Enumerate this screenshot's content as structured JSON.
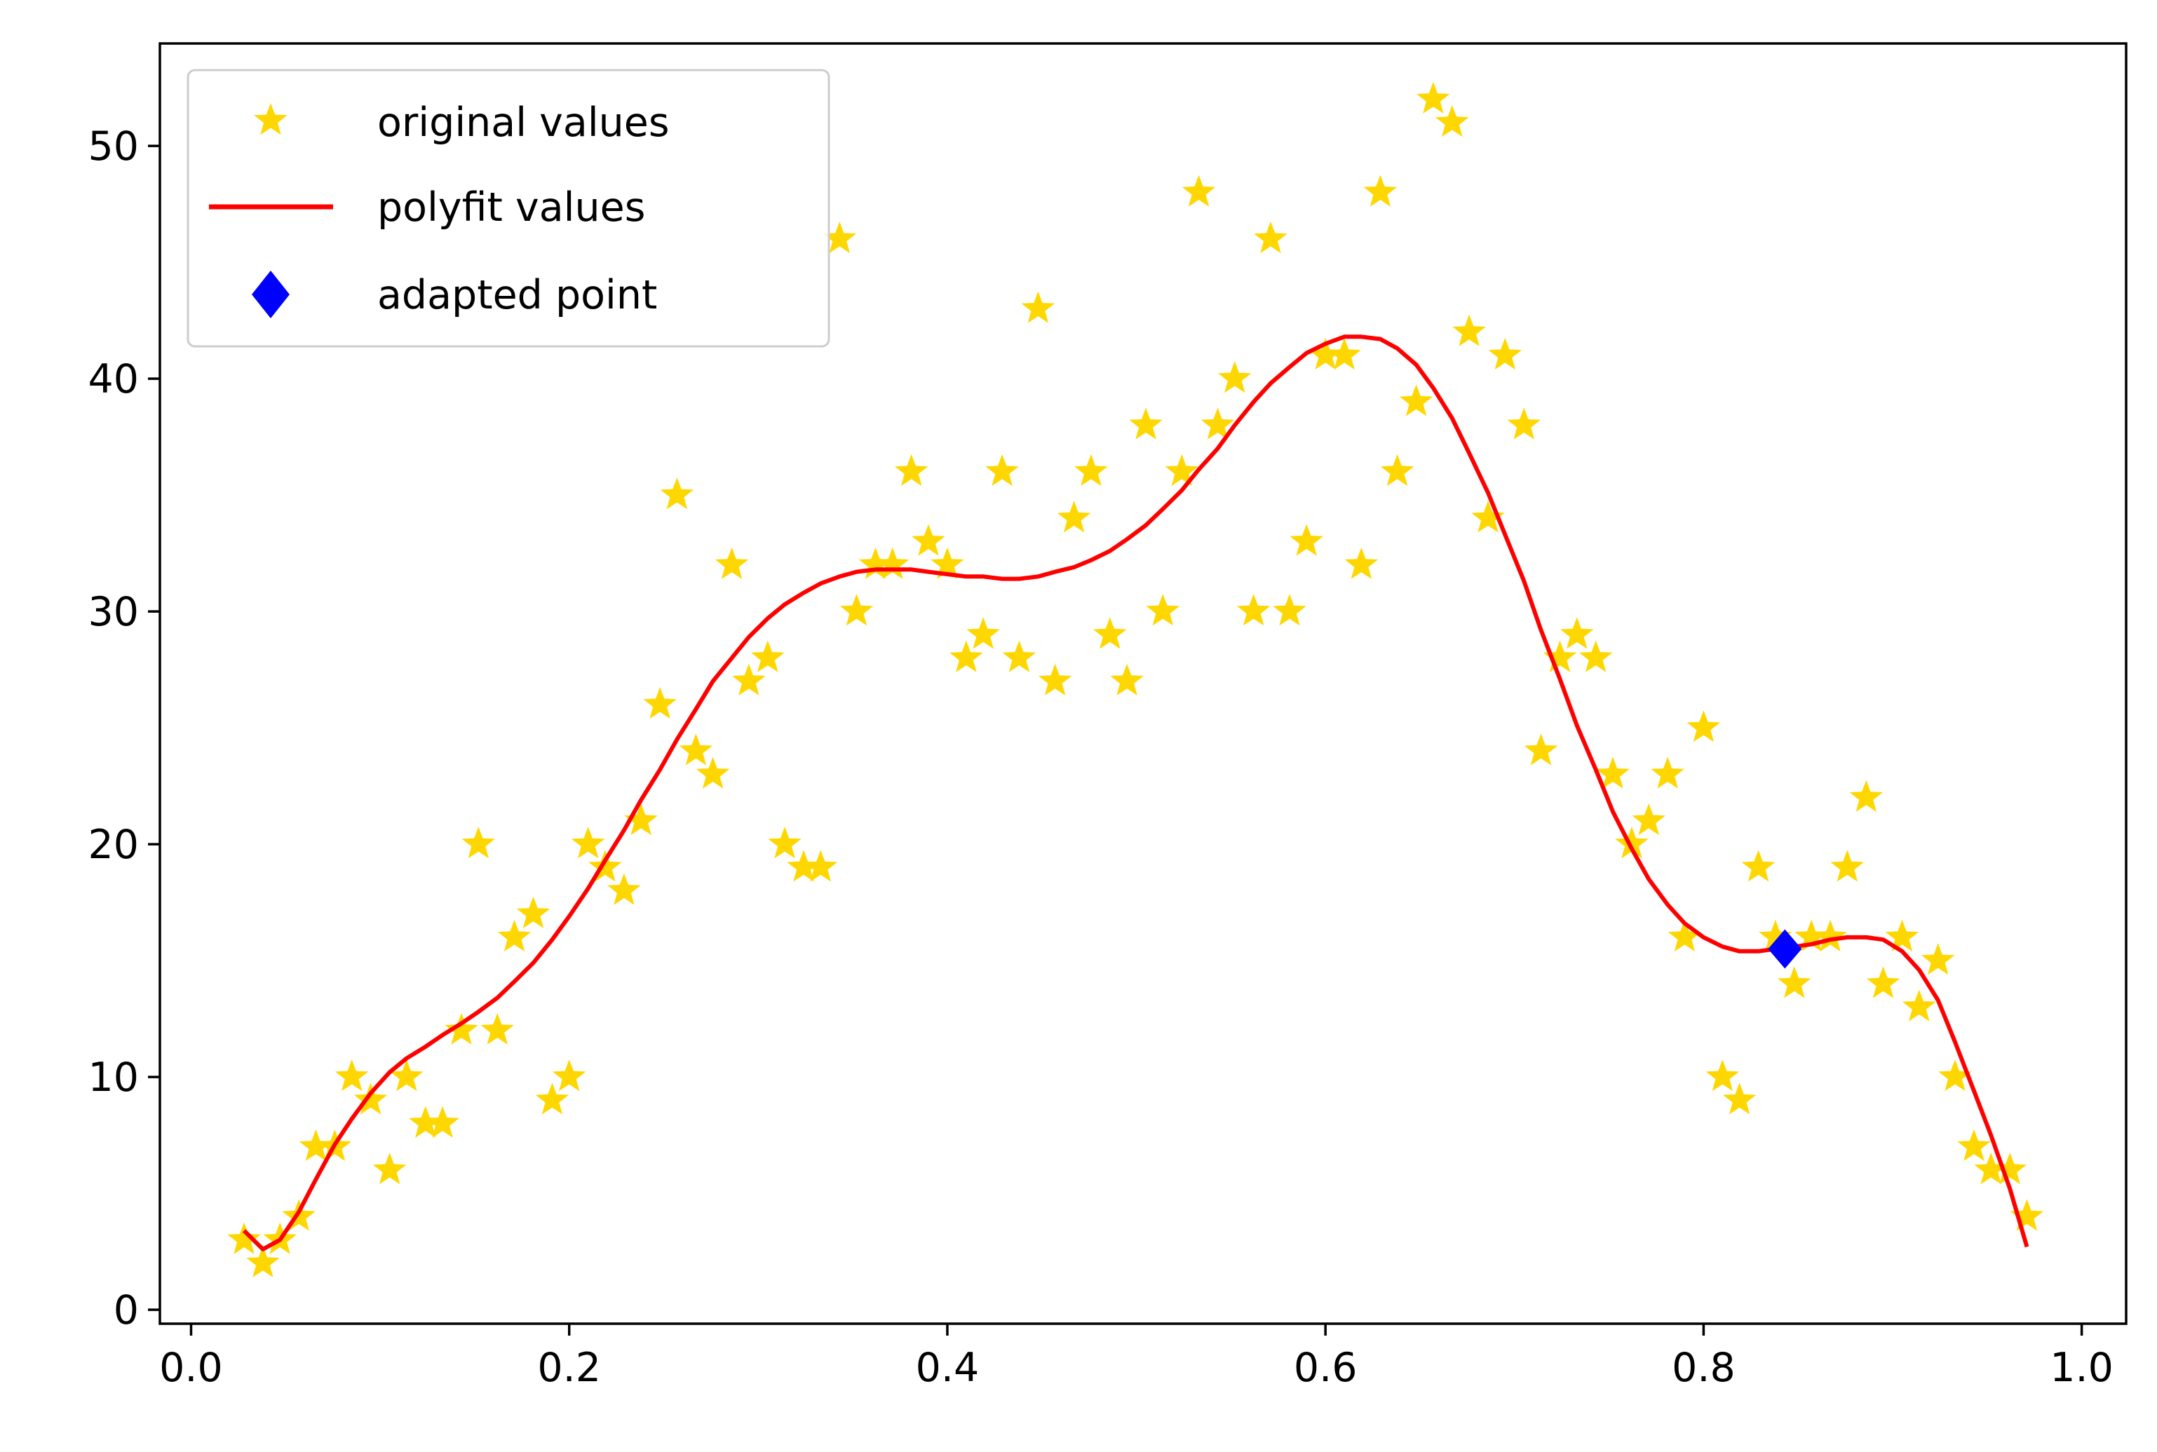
{
  "chart_data": {
    "type": "scatter",
    "title": "",
    "xlabel": "",
    "ylabel": "",
    "xlim": [
      -0.0165,
      1.0235
    ],
    "ylim": [
      -0.6,
      54.4
    ],
    "x_ticks": [
      0.0,
      0.2,
      0.4,
      0.6,
      0.8,
      1.0
    ],
    "x_tick_labels": [
      "0.0",
      "0.2",
      "0.4",
      "0.6",
      "0.8",
      "1.0"
    ],
    "y_ticks": [
      0,
      10,
      20,
      30,
      40,
      50
    ],
    "y_tick_labels": [
      "0",
      "10",
      "20",
      "30",
      "40",
      "50"
    ],
    "grid": false,
    "legend_position": "upper left",
    "series": [
      {
        "name": "original values",
        "kind": "star-markers",
        "color": "#FFD700",
        "points": [
          [
            0.028,
            3
          ],
          [
            0.038,
            2
          ],
          [
            0.047,
            3
          ],
          [
            0.057,
            4
          ],
          [
            0.066,
            7
          ],
          [
            0.076,
            7
          ],
          [
            0.085,
            10
          ],
          [
            0.095,
            9
          ],
          [
            0.105,
            6
          ],
          [
            0.114,
            10
          ],
          [
            0.124,
            8
          ],
          [
            0.133,
            8
          ],
          [
            0.143,
            12
          ],
          [
            0.152,
            20
          ],
          [
            0.162,
            12
          ],
          [
            0.171,
            16
          ],
          [
            0.181,
            17
          ],
          [
            0.191,
            9
          ],
          [
            0.2,
            10
          ],
          [
            0.21,
            20
          ],
          [
            0.219,
            19
          ],
          [
            0.229,
            18
          ],
          [
            0.238,
            21
          ],
          [
            0.248,
            26
          ],
          [
            0.257,
            35
          ],
          [
            0.267,
            24
          ],
          [
            0.276,
            23
          ],
          [
            0.286,
            32
          ],
          [
            0.295,
            27
          ],
          [
            0.305,
            28
          ],
          [
            0.314,
            20
          ],
          [
            0.324,
            19
          ],
          [
            0.333,
            19
          ],
          [
            0.343,
            46
          ],
          [
            0.352,
            30
          ],
          [
            0.362,
            32
          ],
          [
            0.371,
            32
          ],
          [
            0.381,
            36
          ],
          [
            0.39,
            33
          ],
          [
            0.4,
            32
          ],
          [
            0.41,
            28
          ],
          [
            0.419,
            29
          ],
          [
            0.429,
            36
          ],
          [
            0.438,
            28
          ],
          [
            0.448,
            43
          ],
          [
            0.457,
            27
          ],
          [
            0.467,
            34
          ],
          [
            0.476,
            36
          ],
          [
            0.486,
            29
          ],
          [
            0.495,
            27
          ],
          [
            0.505,
            38
          ],
          [
            0.514,
            30
          ],
          [
            0.524,
            36
          ],
          [
            0.533,
            48
          ],
          [
            0.543,
            38
          ],
          [
            0.552,
            40
          ],
          [
            0.562,
            30
          ],
          [
            0.571,
            46
          ],
          [
            0.581,
            30
          ],
          [
            0.59,
            33
          ],
          [
            0.6,
            41
          ],
          [
            0.61,
            41
          ],
          [
            0.619,
            32
          ],
          [
            0.629,
            48
          ],
          [
            0.638,
            36
          ],
          [
            0.648,
            39
          ],
          [
            0.657,
            52
          ],
          [
            0.667,
            51
          ],
          [
            0.676,
            42
          ],
          [
            0.686,
            34
          ],
          [
            0.695,
            41
          ],
          [
            0.705,
            38
          ],
          [
            0.714,
            24
          ],
          [
            0.724,
            28
          ],
          [
            0.733,
            29
          ],
          [
            0.743,
            28
          ],
          [
            0.752,
            23
          ],
          [
            0.762,
            20
          ],
          [
            0.771,
            21
          ],
          [
            0.781,
            23
          ],
          [
            0.79,
            16
          ],
          [
            0.8,
            25
          ],
          [
            0.81,
            10
          ],
          [
            0.819,
            9
          ],
          [
            0.829,
            19
          ],
          [
            0.838,
            16
          ],
          [
            0.848,
            14
          ],
          [
            0.857,
            16
          ],
          [
            0.867,
            16
          ],
          [
            0.876,
            19
          ],
          [
            0.886,
            22
          ],
          [
            0.895,
            14
          ],
          [
            0.905,
            16
          ],
          [
            0.914,
            13
          ],
          [
            0.924,
            15
          ],
          [
            0.933,
            10
          ],
          [
            0.943,
            7
          ],
          [
            0.952,
            6
          ],
          [
            0.962,
            6
          ],
          [
            0.971,
            4
          ]
        ]
      },
      {
        "name": "polyfit values",
        "kind": "line",
        "color": "#FF0000",
        "points": [
          [
            0.028,
            3.4
          ],
          [
            0.038,
            2.6
          ],
          [
            0.047,
            3.0
          ],
          [
            0.057,
            4.2
          ],
          [
            0.066,
            5.6
          ],
          [
            0.076,
            7.1
          ],
          [
            0.085,
            8.2
          ],
          [
            0.095,
            9.3
          ],
          [
            0.105,
            10.2
          ],
          [
            0.114,
            10.8
          ],
          [
            0.124,
            11.3
          ],
          [
            0.133,
            11.8
          ],
          [
            0.143,
            12.3
          ],
          [
            0.152,
            12.8
          ],
          [
            0.162,
            13.4
          ],
          [
            0.171,
            14.1
          ],
          [
            0.181,
            14.9
          ],
          [
            0.191,
            15.9
          ],
          [
            0.2,
            16.9
          ],
          [
            0.21,
            18.1
          ],
          [
            0.219,
            19.3
          ],
          [
            0.229,
            20.6
          ],
          [
            0.238,
            21.9
          ],
          [
            0.248,
            23.2
          ],
          [
            0.257,
            24.5
          ],
          [
            0.267,
            25.8
          ],
          [
            0.276,
            27.0
          ],
          [
            0.286,
            28.0
          ],
          [
            0.295,
            28.9
          ],
          [
            0.305,
            29.7
          ],
          [
            0.314,
            30.3
          ],
          [
            0.324,
            30.8
          ],
          [
            0.333,
            31.2
          ],
          [
            0.343,
            31.5
          ],
          [
            0.352,
            31.7
          ],
          [
            0.362,
            31.8
          ],
          [
            0.371,
            31.8
          ],
          [
            0.381,
            31.8
          ],
          [
            0.39,
            31.7
          ],
          [
            0.4,
            31.6
          ],
          [
            0.41,
            31.5
          ],
          [
            0.419,
            31.5
          ],
          [
            0.429,
            31.4
          ],
          [
            0.438,
            31.4
          ],
          [
            0.448,
            31.5
          ],
          [
            0.457,
            31.7
          ],
          [
            0.467,
            31.9
          ],
          [
            0.476,
            32.2
          ],
          [
            0.486,
            32.6
          ],
          [
            0.495,
            33.1
          ],
          [
            0.505,
            33.7
          ],
          [
            0.514,
            34.4
          ],
          [
            0.524,
            35.2
          ],
          [
            0.533,
            36.1
          ],
          [
            0.543,
            37.0
          ],
          [
            0.552,
            38.0
          ],
          [
            0.562,
            39.0
          ],
          [
            0.571,
            39.8
          ],
          [
            0.581,
            40.5
          ],
          [
            0.59,
            41.1
          ],
          [
            0.6,
            41.5
          ],
          [
            0.61,
            41.8
          ],
          [
            0.619,
            41.8
          ],
          [
            0.629,
            41.7
          ],
          [
            0.638,
            41.3
          ],
          [
            0.648,
            40.6
          ],
          [
            0.657,
            39.6
          ],
          [
            0.667,
            38.3
          ],
          [
            0.676,
            36.8
          ],
          [
            0.686,
            35.1
          ],
          [
            0.695,
            33.3
          ],
          [
            0.705,
            31.3
          ],
          [
            0.714,
            29.2
          ],
          [
            0.724,
            27.1
          ],
          [
            0.733,
            25.1
          ],
          [
            0.743,
            23.2
          ],
          [
            0.752,
            21.4
          ],
          [
            0.762,
            19.8
          ],
          [
            0.771,
            18.5
          ],
          [
            0.781,
            17.4
          ],
          [
            0.79,
            16.6
          ],
          [
            0.8,
            16.0
          ],
          [
            0.81,
            15.6
          ],
          [
            0.819,
            15.4
          ],
          [
            0.829,
            15.4
          ],
          [
            0.838,
            15.5
          ],
          [
            0.848,
            15.6
          ],
          [
            0.857,
            15.7
          ],
          [
            0.867,
            15.9
          ],
          [
            0.876,
            16.0
          ],
          [
            0.886,
            16.0
          ],
          [
            0.895,
            15.9
          ],
          [
            0.905,
            15.4
          ],
          [
            0.914,
            14.6
          ],
          [
            0.924,
            13.3
          ],
          [
            0.933,
            11.5
          ],
          [
            0.943,
            9.4
          ],
          [
            0.952,
            7.5
          ],
          [
            0.962,
            5.2
          ],
          [
            0.971,
            2.7
          ]
        ]
      },
      {
        "name": "adapted point",
        "kind": "diamond-marker",
        "color": "#0000FF",
        "points": [
          [
            0.843,
            15.5
          ]
        ]
      }
    ]
  }
}
